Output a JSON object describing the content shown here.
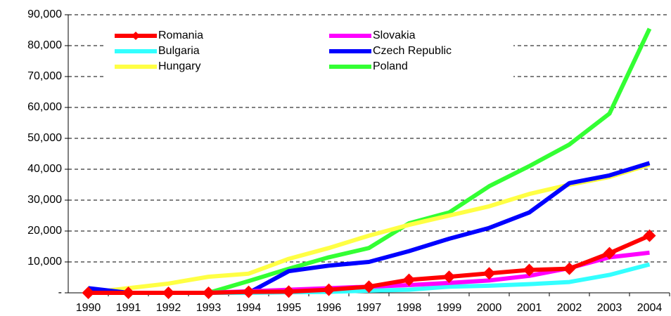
{
  "chart_data": {
    "type": "line",
    "categories": [
      "1990",
      "1991",
      "1992",
      "1993",
      "1994",
      "1995",
      "1996",
      "1997",
      "1998",
      "1999",
      "2000",
      "2001",
      "2002",
      "2003",
      "2004"
    ],
    "series": [
      {
        "name": "Romania",
        "color": "#ff0000",
        "marker": "diamond",
        "values": [
          0,
          0,
          0,
          0,
          300,
          400,
          1000,
          2000,
          4200,
          5200,
          6300,
          7400,
          7800,
          12800,
          18500
        ]
      },
      {
        "name": "Slovakia",
        "color": "#ff00ff",
        "values": [
          0,
          0,
          0,
          0,
          500,
          1000,
          1500,
          2000,
          2500,
          3200,
          4000,
          5500,
          8000,
          11500,
          13000
        ]
      },
      {
        "name": "Bulgaria",
        "color": "#33ffff",
        "values": [
          0,
          0,
          0,
          0,
          0,
          200,
          300,
          700,
          1000,
          2000,
          2300,
          2800,
          3500,
          5800,
          9200
        ]
      },
      {
        "name": "Czech Republic",
        "color": "#0000ff",
        "values": [
          1500,
          0,
          0,
          0,
          0,
          7000,
          8800,
          10000,
          13500,
          17500,
          21000,
          26000,
          35500,
          38000,
          42000
        ]
      },
      {
        "name": "Hungary",
        "color": "#ffff44",
        "values": [
          0,
          1500,
          3000,
          5200,
          6200,
          11000,
          14500,
          18500,
          22000,
          25000,
          28000,
          32000,
          35000,
          37500,
          41500
        ]
      },
      {
        "name": "Poland",
        "color": "#33ff33",
        "values": [
          0,
          0,
          0,
          0,
          3800,
          7800,
          11500,
          14500,
          22500,
          26000,
          34500,
          41000,
          48000,
          58000,
          85500
        ]
      }
    ],
    "ylim": [
      0,
      90000
    ],
    "yticks": [
      {
        "value": 0,
        "label": "-"
      },
      {
        "value": 10000,
        "label": "10,000"
      },
      {
        "value": 20000,
        "label": "20,000"
      },
      {
        "value": 30000,
        "label": "30,000"
      },
      {
        "value": 40000,
        "label": "40,000"
      },
      {
        "value": 50000,
        "label": "50,000"
      },
      {
        "value": 60000,
        "label": "60,000"
      },
      {
        "value": 70000,
        "label": "70,000"
      },
      {
        "value": 80000,
        "label": "80,000"
      },
      {
        "value": 90000,
        "label": "90,000"
      }
    ],
    "grid": true
  }
}
